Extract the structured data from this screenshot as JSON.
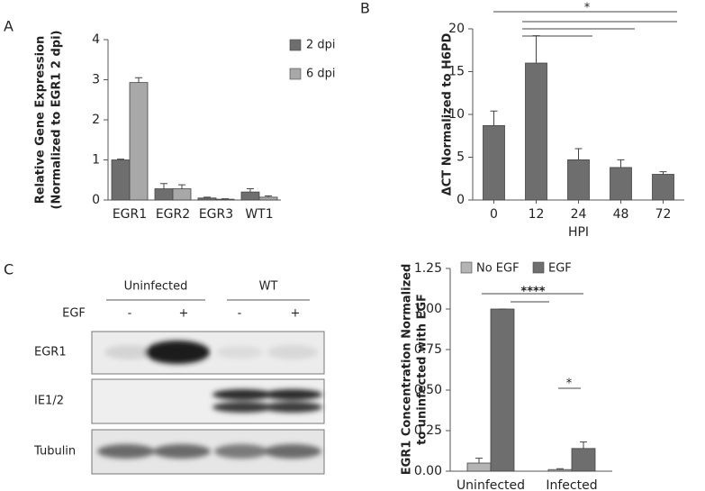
{
  "panels": [
    "A",
    "B",
    "C"
  ],
  "chart_data": [
    {
      "type": "bar",
      "ylabel": [
        "Relative Gene Expression",
        "(Normalized to EGR1 2 dpi)"
      ],
      "categories": [
        "EGR1",
        "EGR2",
        "EGR3",
        "WT1"
      ],
      "series": [
        {
          "name": "2 dpi",
          "color": "#6e6e6e",
          "values": [
            1.0,
            0.28,
            0.05,
            0.2
          ],
          "errors": [
            0.02,
            0.13,
            0.02,
            0.08
          ]
        },
        {
          "name": "6 dpi",
          "color": "#a8a8a8",
          "values": [
            2.93,
            0.28,
            0.02,
            0.07
          ],
          "errors": [
            0.12,
            0.1,
            0.01,
            0.03
          ]
        }
      ],
      "ylim": [
        0,
        4
      ],
      "yticks": [
        0,
        1,
        2,
        3,
        4
      ],
      "legend": "right"
    },
    {
      "type": "bar",
      "ylabel": [
        "ΔCT Normalized to H6PD"
      ],
      "xlabel": "HPI",
      "categories": [
        "0",
        "12",
        "24",
        "48",
        "72"
      ],
      "series": [
        {
          "name": "ΔCT",
          "color": "#6e6e6e",
          "values": [
            8.7,
            16.0,
            4.7,
            3.8,
            3.0
          ],
          "errors": [
            1.7,
            3.2,
            1.3,
            0.9,
            0.3
          ]
        }
      ],
      "ylim": [
        0,
        20
      ],
      "yticks": [
        0,
        5,
        10,
        15,
        20
      ],
      "annotations": [
        "*"
      ]
    },
    {
      "type": "bar",
      "ylabel": [
        "EGR1 Concentration Normalized",
        "to uninfected with EGF"
      ],
      "categories": [
        "Uninfected",
        "Infected"
      ],
      "series": [
        {
          "name": "No EGF",
          "color": "#b4b4b4",
          "values": [
            0.05,
            0.01
          ],
          "errors": [
            0.03,
            0.005
          ]
        },
        {
          "name": "EGF",
          "color": "#6e6e6e",
          "values": [
            1.0,
            0.14
          ],
          "errors": [
            0,
            0.04
          ]
        }
      ],
      "ylim": [
        0,
        1.25
      ],
      "yticks": [
        {
          "value": 0,
          "label": "0.00"
        },
        0.25,
        {
          "value": 0.5,
          "label": "0.50"
        },
        0.75,
        {
          "value": 1,
          "label": "1.00"
        },
        1.25
      ],
      "legend": "top",
      "annotations": [
        "****",
        "*"
      ]
    }
  ],
  "blot": {
    "groups": [
      "Uninfected",
      "WT"
    ],
    "treatment": "EGF",
    "lanes": [
      "-",
      "+",
      "-",
      "+"
    ],
    "rows": [
      "EGR1",
      "IE1/2",
      "Tubulin"
    ]
  }
}
